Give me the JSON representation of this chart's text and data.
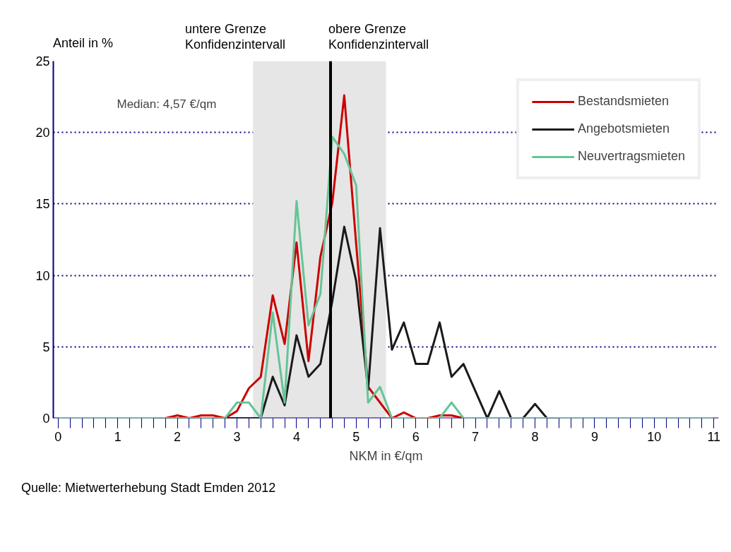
{
  "chart_data": {
    "type": "line",
    "xlabel": "NKM in €/qm",
    "ylabel": "Anteil in %",
    "x": [
      0,
      0.2,
      0.4,
      0.6,
      0.8,
      1,
      1.2,
      1.4,
      1.6,
      1.8,
      2,
      2.2,
      2.4,
      2.6,
      2.8,
      3,
      3.2,
      3.4,
      3.6,
      3.8,
      4,
      4.2,
      4.4,
      4.6,
      4.8,
      5,
      5.2,
      5.4,
      5.6,
      5.8,
      6,
      6.2,
      6.4,
      6.6,
      6.8,
      7,
      7.2,
      7.4,
      7.6,
      7.8,
      8,
      8.2,
      8.4,
      8.6,
      8.8,
      9,
      9.2,
      9.4,
      9.6,
      9.8,
      10,
      10.2,
      10.4,
      10.6,
      10.8,
      11
    ],
    "series": [
      {
        "name": "Bestandsmieten",
        "color": "#cc0000",
        "values": [
          null,
          null,
          null,
          null,
          null,
          null,
          null,
          null,
          null,
          0,
          0.2,
          0,
          0.2,
          0.2,
          0,
          0.5,
          2.1,
          2.9,
          8.6,
          5.2,
          12.3,
          4.0,
          11.3,
          15.1,
          22.6,
          12.2,
          2.2,
          1.1,
          0,
          0.4,
          0,
          0,
          0.2,
          0.2,
          0,
          null,
          null,
          null,
          null,
          null,
          null,
          null,
          null,
          null,
          null,
          null,
          null,
          null,
          null,
          null,
          null,
          null,
          null,
          null,
          null,
          null
        ]
      },
      {
        "name": "Angebotsmieten",
        "color": "#1a1a1a",
        "values": [
          null,
          null,
          null,
          null,
          null,
          null,
          null,
          null,
          0,
          0,
          0,
          0,
          0,
          0,
          0,
          0,
          0,
          0,
          2.9,
          0.9,
          5.8,
          2.9,
          3.8,
          8.2,
          13.4,
          9.6,
          2.0,
          13.3,
          4.8,
          6.7,
          3.8,
          3.8,
          6.7,
          2.9,
          3.8,
          1.9,
          0,
          1.9,
          0,
          0,
          1.0,
          0,
          0,
          null,
          null,
          null,
          null,
          null,
          null,
          null,
          null,
          null,
          null,
          null,
          null,
          null
        ]
      },
      {
        "name": "Neuvertragsmieten",
        "color": "#66c497",
        "values": [
          0,
          0,
          0,
          0,
          0,
          0,
          0,
          0,
          0,
          0,
          0,
          0,
          0,
          0,
          0,
          1.1,
          1.1,
          0,
          7.4,
          1.1,
          15.2,
          6.5,
          8.7,
          19.7,
          18.5,
          16.3,
          1.1,
          2.2,
          0,
          0,
          0,
          0,
          0,
          1.1,
          0,
          0,
          0,
          0,
          0,
          0,
          0,
          0,
          0,
          0,
          0,
          0,
          0,
          0,
          0,
          0,
          0,
          0,
          0,
          0,
          0,
          0
        ]
      }
    ],
    "xlim": [
      -0.08,
      11.08
    ],
    "xticks": [
      0,
      1,
      2,
      3,
      4,
      5,
      6,
      7,
      8,
      9,
      10,
      11
    ],
    "ylim": [
      0,
      25
    ],
    "yticks": [
      0,
      5,
      10,
      15,
      20,
      25
    ],
    "grid": "y",
    "legend": "top right",
    "marker": "none",
    "line_style": "solid",
    "ref_lines": [
      {
        "axis": "x",
        "value": 4.57,
        "color": "#000000"
      }
    ],
    "bands": [
      {
        "axis": "x",
        "from": 3.27,
        "to": 5.5,
        "color": "#e6e6e6"
      }
    ],
    "annotations": [
      "untere Grenze\nKonfidenzintervall",
      "obere Grenze\nKonfidenzintervall",
      "Median: 4,57 €/qm",
      "Quelle: Mietwerterhebung Stadt Emden 2012"
    ]
  }
}
